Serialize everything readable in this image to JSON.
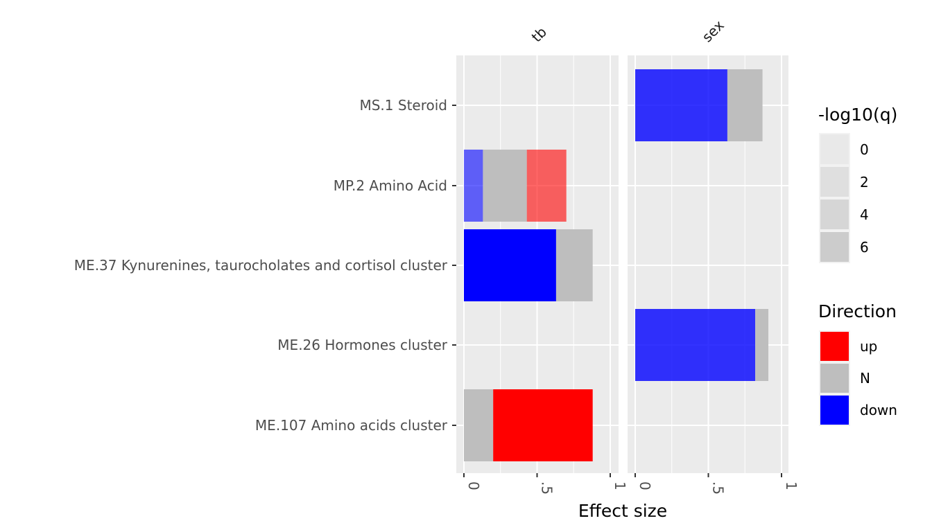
{
  "chart_data": {
    "type": "bar",
    "orientation": "horizontal",
    "stacked": true,
    "xlabel": "Effect size",
    "x_ticks": [
      "0",
      ".5",
      "1"
    ],
    "xlim": [
      0,
      1
    ],
    "categories": [
      "MS.1 Steroid",
      "MP.2 Amino Acid",
      "ME.37 Kynurenines, taurocholates and cortisol cluster",
      "ME.26 Hormones cluster",
      "ME.107 Amino acids cluster"
    ],
    "panels": [
      {
        "name": "tb",
        "bars": [
          {
            "category": "MP.2 Amino Acid",
            "segments": [
              {
                "direction": "down",
                "start": 0,
                "end": 0.13,
                "log10q": 2
              },
              {
                "direction": "N",
                "start": 0.13,
                "end": 0.43,
                "log10q": 2
              },
              {
                "direction": "up",
                "start": 0.43,
                "end": 0.7,
                "log10q": 2
              }
            ]
          },
          {
            "category": "ME.37 Kynurenines, taurocholates and cortisol cluster",
            "segments": [
              {
                "direction": "down",
                "start": 0,
                "end": 0.63,
                "log10q": 6
              },
              {
                "direction": "N",
                "start": 0.63,
                "end": 0.88,
                "log10q": 6
              }
            ]
          },
          {
            "category": "ME.107 Amino acids cluster",
            "segments": [
              {
                "direction": "N",
                "start": 0,
                "end": 0.2,
                "log10q": 6
              },
              {
                "direction": "up",
                "start": 0.2,
                "end": 0.88,
                "log10q": 6
              }
            ]
          }
        ]
      },
      {
        "name": "sex",
        "bars": [
          {
            "category": "MS.1 Steroid",
            "segments": [
              {
                "direction": "down",
                "start": 0,
                "end": 0.63,
                "log10q": 4
              },
              {
                "direction": "N",
                "start": 0.63,
                "end": 0.87,
                "log10q": 4
              }
            ]
          },
          {
            "category": "ME.26 Hormones cluster",
            "segments": [
              {
                "direction": "down",
                "start": 0,
                "end": 0.82,
                "log10q": 4
              },
              {
                "direction": "N",
                "start": 0.82,
                "end": 0.91,
                "log10q": 4
              }
            ]
          }
        ]
      }
    ],
    "legends": {
      "alpha": {
        "title": "-log10(q)",
        "levels": [
          "0",
          "2",
          "4",
          "6"
        ],
        "alphas": [
          0.15,
          0.3,
          0.45,
          0.6
        ]
      },
      "direction": {
        "title": "Direction",
        "items": [
          {
            "label": "up",
            "color": "#ff0000"
          },
          {
            "label": "N",
            "color": "#bebebe"
          },
          {
            "label": "down",
            "color": "#0000ff"
          }
        ]
      }
    },
    "grid": true,
    "panel_background": "#ebebeb",
    "legend_position": "right"
  }
}
